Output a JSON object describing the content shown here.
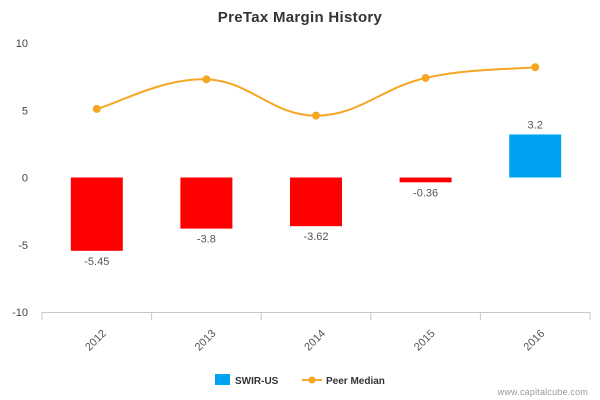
{
  "chart_data": {
    "type": "bar",
    "title": "PreTax Margin History",
    "categories": [
      "2012",
      "2013",
      "2014",
      "2015",
      "2016"
    ],
    "ylim": [
      -10,
      10
    ],
    "yticks": [
      10,
      5,
      0,
      -5,
      -10
    ],
    "grid": false,
    "legend_position": "bottom-center",
    "series": [
      {
        "name": "SWIR-US",
        "kind": "bar",
        "values": [
          -5.45,
          -3.8,
          -3.62,
          -0.36,
          3.2
        ],
        "value_labels": [
          "-5.45",
          "-3.8",
          "-3.62",
          "-0.36",
          "3.2"
        ],
        "positive_color": "#00a2f2",
        "negative_color": "#ff0000"
      },
      {
        "name": "Peer Median",
        "kind": "line",
        "values": [
          5.1,
          7.3,
          4.6,
          7.4,
          8.2
        ],
        "color": "#f5a623"
      }
    ]
  },
  "credit": "www.capitalcube.com"
}
